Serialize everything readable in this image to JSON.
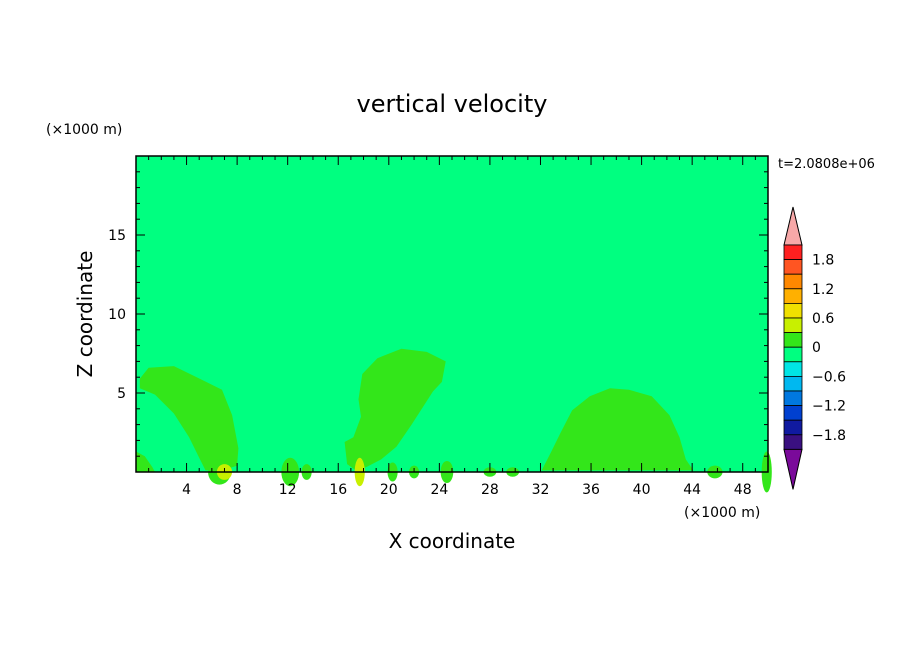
{
  "chart_data": {
    "type": "heatmap",
    "title": "vertical velocity",
    "xlabel": "X coordinate",
    "ylabel": "Z coordinate",
    "x_unit": "(×1000 m)",
    "y_unit": "(×1000 m)",
    "time_label": "t=2.0808e+06",
    "xlim": [
      0,
      50
    ],
    "ylim": [
      0,
      20
    ],
    "x_ticks": [
      4,
      8,
      12,
      16,
      20,
      24,
      28,
      32,
      36,
      40,
      44,
      48
    ],
    "y_ticks": [
      5,
      10,
      15
    ],
    "background_value": "0",
    "colorbar": {
      "labels": [
        "1.8",
        "1.2",
        "0.6",
        "0",
        "−0.6",
        "−1.2",
        "−1.8"
      ],
      "levels_top_to_bottom": [
        2.1,
        1.8,
        1.5,
        1.2,
        0.9,
        0.6,
        0.3,
        0.0,
        -0.3,
        -0.6,
        -0.9,
        -1.2,
        -1.5,
        -1.8,
        -2.1
      ],
      "colors_top_to_bottom": [
        "#f7a8a8",
        "#ff2020",
        "#ff5522",
        "#ff8800",
        "#ffb000",
        "#f0e000",
        "#c8f000",
        "#33e61a",
        "#00ff80",
        "#00e5e5",
        "#00b8f0",
        "#0078e0",
        "#0040d0",
        "#101aa0",
        "#3a1080",
        "#7a0a9a"
      ]
    },
    "regions": [
      {
        "name": "updraft-left",
        "value": 0.2,
        "outline": [
          [
            0.3,
            5.9
          ],
          [
            1,
            6.6
          ],
          [
            3,
            6.7
          ],
          [
            4.8,
            6.0
          ],
          [
            6.8,
            5.2
          ],
          [
            7.6,
            3.6
          ],
          [
            8.1,
            1.5
          ],
          [
            8.0,
            0.4
          ],
          [
            6.8,
            0.1
          ],
          [
            5.5,
            0.1
          ],
          [
            5.0,
            0.9
          ],
          [
            4.2,
            2.2
          ],
          [
            3.0,
            3.7
          ],
          [
            1.5,
            4.9
          ],
          [
            0.3,
            5.3
          ]
        ]
      },
      {
        "name": "updraft-center",
        "value": 0.2,
        "outline": [
          [
            16.5,
            1.9
          ],
          [
            17.2,
            2.2
          ],
          [
            17.8,
            3.5
          ],
          [
            17.6,
            4.6
          ],
          [
            17.9,
            6.2
          ],
          [
            19.1,
            7.2
          ],
          [
            21,
            7.8
          ],
          [
            23,
            7.6
          ],
          [
            24.5,
            7.0
          ],
          [
            24.2,
            5.7
          ],
          [
            23.5,
            5.1
          ],
          [
            21.8,
            3.0
          ],
          [
            20.6,
            1.6
          ],
          [
            19.4,
            0.8
          ],
          [
            18.2,
            0.3
          ],
          [
            17.4,
            0.1
          ],
          [
            16.7,
            0.5
          ]
        ]
      },
      {
        "name": "updraft-right",
        "value": 0.2,
        "outline": [
          [
            32.1,
            0.1
          ],
          [
            32.8,
            1.2
          ],
          [
            33.6,
            2.5
          ],
          [
            34.5,
            3.9
          ],
          [
            35.9,
            4.8
          ],
          [
            37.5,
            5.3
          ],
          [
            39,
            5.2
          ],
          [
            40.8,
            4.8
          ],
          [
            42.2,
            3.6
          ],
          [
            43,
            2.2
          ],
          [
            43.5,
            0.8
          ],
          [
            44.1,
            0.1
          ]
        ]
      },
      {
        "name": "near-surface-left",
        "value": 0.2,
        "outline": [
          [
            0,
            1.3
          ],
          [
            0.7,
            1.0
          ],
          [
            1.3,
            0.3
          ],
          [
            1.5,
            0
          ],
          [
            0,
            0
          ]
        ]
      }
    ]
  }
}
